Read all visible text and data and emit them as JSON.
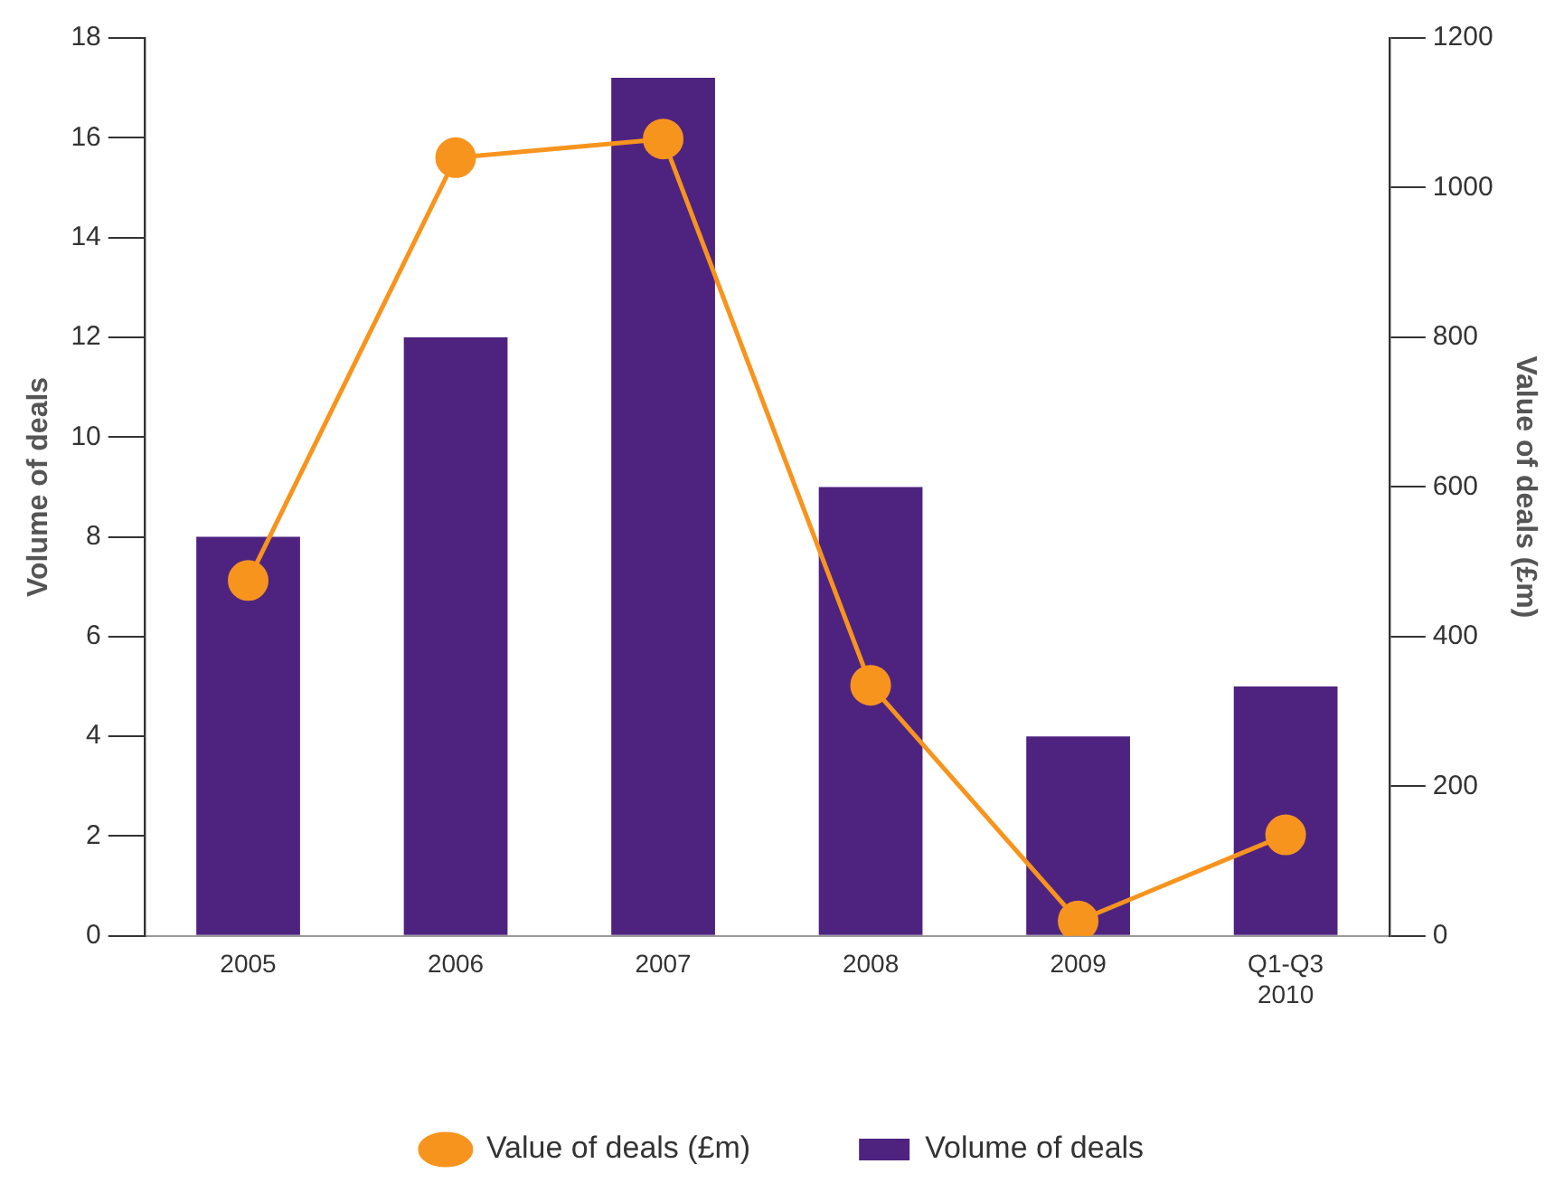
{
  "chart_data": {
    "type": "bar",
    "categories": [
      "2005",
      "2006",
      "2007",
      "2008",
      "2009",
      "Q1-Q3 2010"
    ],
    "series": [
      {
        "name": "Volume of deals",
        "color": "#4e2380",
        "values": [
          8,
          12,
          17.2,
          9,
          4,
          5
        ]
      },
      {
        "name": "Value of deals (£m)",
        "type": "line",
        "axis": "y2",
        "color": "#f7941d",
        "marker": "circle",
        "values": [
          475,
          1040,
          1065,
          335,
          20,
          135
        ]
      }
    ],
    "ylabel": "Volume of deals",
    "y2label": "Value of deals (£m)",
    "ylim": [
      0,
      18
    ],
    "yticks": [
      0,
      2,
      4,
      6,
      8,
      10,
      12,
      14,
      16,
      18
    ],
    "y2lim": [
      0,
      1200
    ],
    "y2ticks": [
      0,
      200,
      400,
      600,
      800,
      1000,
      1200
    ],
    "grid": false,
    "legend": "bottom"
  }
}
